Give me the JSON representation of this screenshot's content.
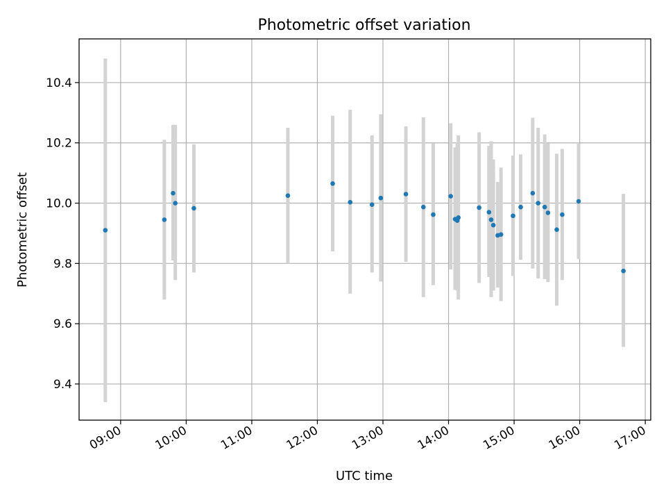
{
  "chart_data": {
    "type": "scatter",
    "title": "Photometric offset variation",
    "xlabel": "UTC time",
    "ylabel": "Photometric offset",
    "xlim": [
      "08:22",
      "17:05"
    ],
    "ylim": [
      9.28,
      10.545
    ],
    "grid": true,
    "x_ticks": [
      "09:00",
      "10:00",
      "11:00",
      "12:00",
      "13:00",
      "14:00",
      "15:00",
      "16:00",
      "17:00"
    ],
    "y_ticks": [
      9.4,
      9.6,
      9.8,
      10.0,
      10.2,
      10.4
    ],
    "point_color": "#1f77b4",
    "errorbar_color": "#d3d3d3",
    "points": [
      {
        "x": "08:46",
        "y": 9.91,
        "ymin": 9.34,
        "ymax": 10.48
      },
      {
        "x": "09:40",
        "y": 9.945,
        "ymin": 9.68,
        "ymax": 10.21
      },
      {
        "x": "09:48",
        "y": 10.033,
        "ymin": 9.81,
        "ymax": 10.26
      },
      {
        "x": "09:50",
        "y": 10.0,
        "ymin": 9.745,
        "ymax": 10.26
      },
      {
        "x": "10:07",
        "y": 9.983,
        "ymin": 9.77,
        "ymax": 10.195
      },
      {
        "x": "11:33",
        "y": 10.025,
        "ymin": 9.8,
        "ymax": 10.25
      },
      {
        "x": "12:14",
        "y": 10.065,
        "ymin": 9.84,
        "ymax": 10.29
      },
      {
        "x": "12:30",
        "y": 10.003,
        "ymin": 9.7,
        "ymax": 10.31
      },
      {
        "x": "12:50",
        "y": 9.995,
        "ymin": 9.77,
        "ymax": 10.225
      },
      {
        "x": "12:58",
        "y": 10.017,
        "ymin": 9.74,
        "ymax": 10.295
      },
      {
        "x": "13:21",
        "y": 10.03,
        "ymin": 9.805,
        "ymax": 10.255
      },
      {
        "x": "13:37",
        "y": 9.987,
        "ymin": 9.688,
        "ymax": 10.285
      },
      {
        "x": "13:46",
        "y": 9.962,
        "ymin": 9.728,
        "ymax": 10.198
      },
      {
        "x": "14:02",
        "y": 10.023,
        "ymin": 9.78,
        "ymax": 10.265
      },
      {
        "x": "14:06",
        "y": 9.947,
        "ymin": 9.712,
        "ymax": 10.185
      },
      {
        "x": "14:09",
        "y": 9.952,
        "ymin": 9.68,
        "ymax": 10.225
      },
      {
        "x": "14:08",
        "y": 9.942,
        "ymin": 9.71,
        "ymax": 10.2
      },
      {
        "x": "14:28",
        "y": 9.985,
        "ymin": 9.735,
        "ymax": 10.235
      },
      {
        "x": "14:37",
        "y": 9.97,
        "ymin": 9.755,
        "ymax": 10.19
      },
      {
        "x": "14:39",
        "y": 9.945,
        "ymin": 9.688,
        "ymax": 10.205
      },
      {
        "x": "14:41",
        "y": 9.927,
        "ymin": 9.71,
        "ymax": 10.145
      },
      {
        "x": "14:45",
        "y": 9.893,
        "ymin": 9.72,
        "ymax": 10.07
      },
      {
        "x": "14:48",
        "y": 9.896,
        "ymin": 9.675,
        "ymax": 10.118
      },
      {
        "x": "14:59",
        "y": 9.958,
        "ymin": 9.758,
        "ymax": 10.158
      },
      {
        "x": "15:06",
        "y": 9.987,
        "ymin": 9.812,
        "ymax": 10.162
      },
      {
        "x": "15:17",
        "y": 10.033,
        "ymin": 9.783,
        "ymax": 10.283
      },
      {
        "x": "15:22",
        "y": 10.0,
        "ymin": 9.75,
        "ymax": 10.25
      },
      {
        "x": "15:28",
        "y": 9.987,
        "ymin": 9.748,
        "ymax": 10.228
      },
      {
        "x": "15:31",
        "y": 9.968,
        "ymin": 9.738,
        "ymax": 10.198
      },
      {
        "x": "15:39",
        "y": 9.912,
        "ymin": 9.66,
        "ymax": 10.164
      },
      {
        "x": "15:44",
        "y": 9.962,
        "ymin": 9.745,
        "ymax": 10.18
      },
      {
        "x": "15:59",
        "y": 10.006,
        "ymin": 9.815,
        "ymax": 10.197
      },
      {
        "x": "16:40",
        "y": 9.775,
        "ymin": 9.523,
        "ymax": 10.031
      }
    ]
  }
}
